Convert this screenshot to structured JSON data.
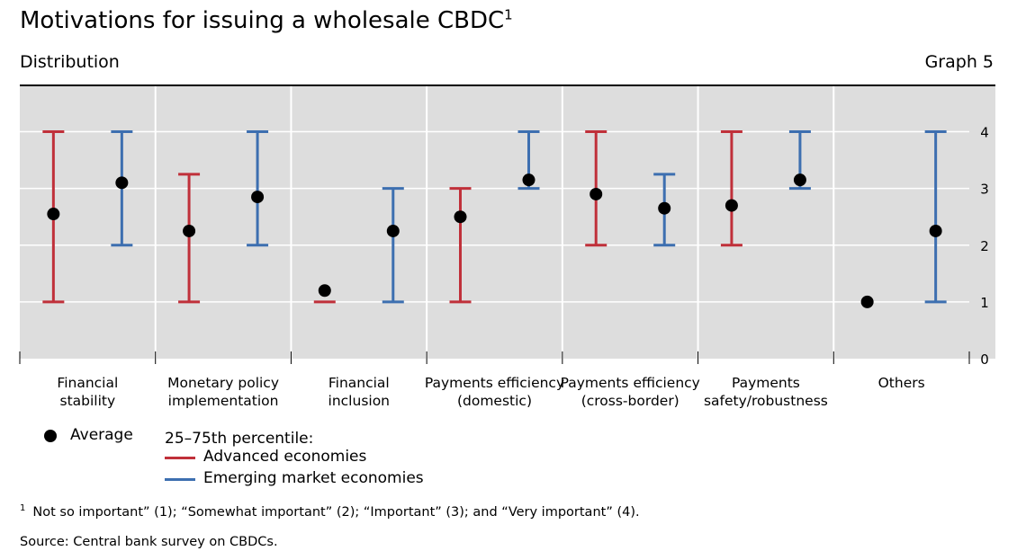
{
  "header": {
    "title": "Motivations for issuing a wholesale CBDC",
    "title_note": "1",
    "subtitle": "Distribution",
    "graph_label": "Graph 5"
  },
  "legend": {
    "average_label": "Average",
    "percentile_label": "25–75th percentile:",
    "advanced_label": "Advanced economies",
    "emerging_label": "Emerging market economies"
  },
  "footnote": {
    "marker": "1",
    "text": "Not so important” (1); “Somewhat important” (2); “Important” (3); and “Very important” (4)."
  },
  "source": "Source: Central bank survey on CBDCs.",
  "colors": {
    "advanced": "#c0303a",
    "emerging": "#3d6fb0",
    "average": "#000000",
    "plot_bg": "#dddddd",
    "grid": "#ffffff"
  },
  "chart_data": {
    "type": "range_dot",
    "y_ticks": [
      "0",
      "1",
      "2",
      "3",
      "4"
    ],
    "ylim": [
      0,
      4.8
    ],
    "grid": true,
    "categories": [
      [
        "Financial",
        "stability"
      ],
      [
        "Monetary policy",
        "implementation"
      ],
      [
        "Financial",
        "inclusion"
      ],
      [
        "Payments efficiency",
        "(domestic)"
      ],
      [
        "Payments efficiency",
        "(cross-border)"
      ],
      [
        "Payments",
        "safety/robustness"
      ],
      [
        "Others"
      ]
    ],
    "series": [
      {
        "name": "Advanced economies",
        "p25": [
          1,
          1,
          1,
          1,
          2,
          2,
          null
        ],
        "p75": [
          4,
          3.25,
          1,
          3,
          4,
          4,
          null
        ],
        "average": [
          2.55,
          2.25,
          1.2,
          2.5,
          2.9,
          2.7,
          1
        ]
      },
      {
        "name": "Emerging market economies",
        "p25": [
          2,
          2,
          1,
          3,
          2,
          3,
          1
        ],
        "p75": [
          4,
          4,
          3,
          4,
          3.25,
          4,
          4
        ],
        "average": [
          3.1,
          2.85,
          2.25,
          3.15,
          2.65,
          3.15,
          2.25
        ]
      }
    ]
  }
}
